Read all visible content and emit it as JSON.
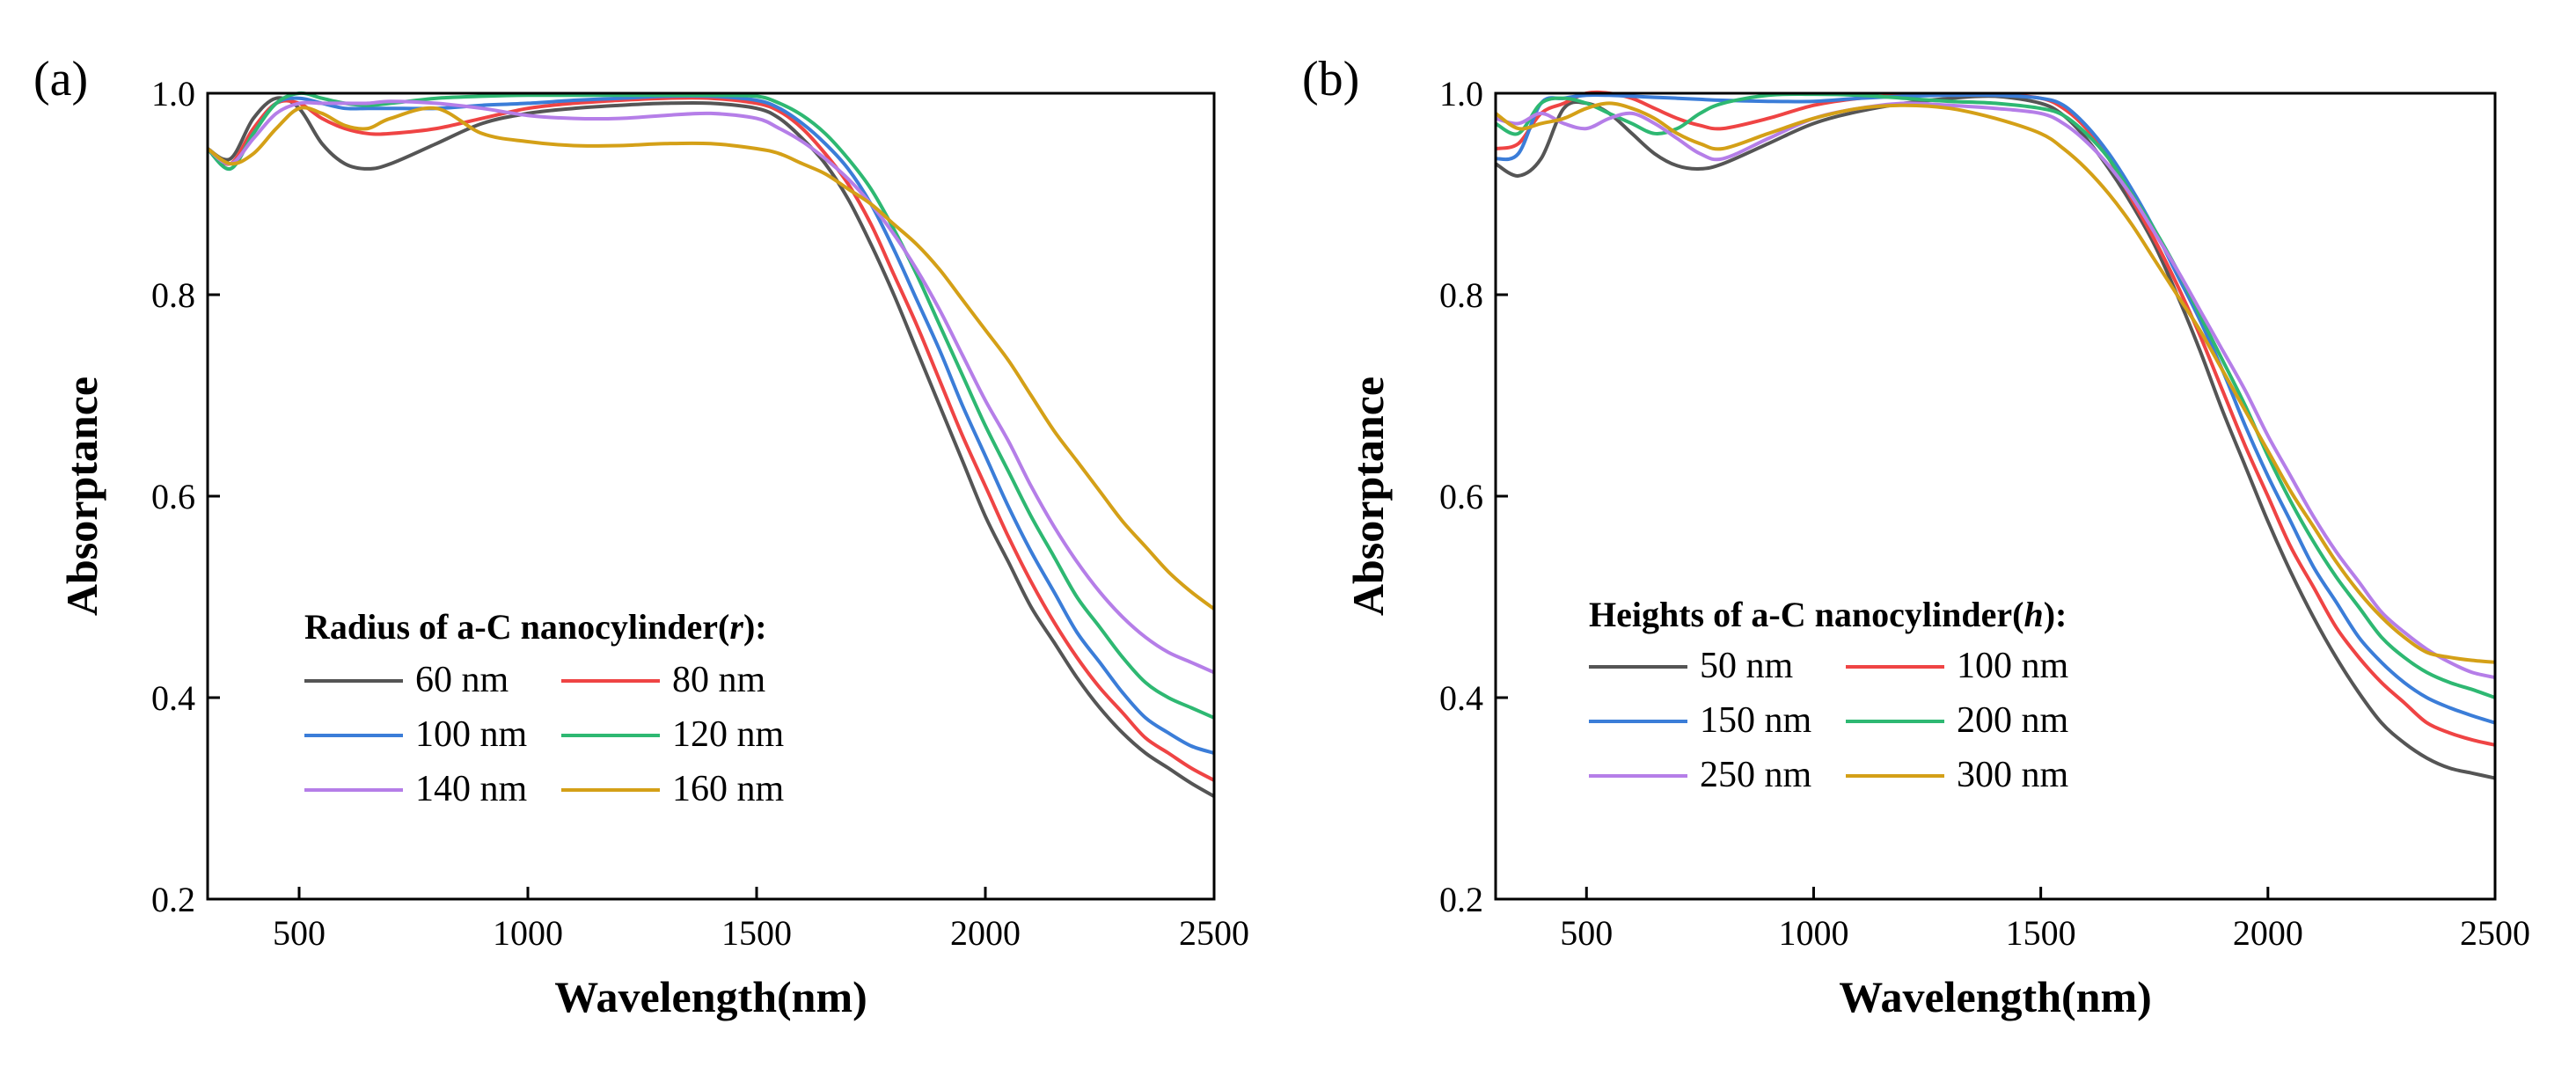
{
  "chart_data": [
    {
      "type": "line",
      "panel": "(a)",
      "xlabel": "Wavelength(nm)",
      "ylabel": "Absorptance",
      "xlim": [
        300,
        2500
      ],
      "ylim": [
        0.2,
        1.0
      ],
      "xticks": [
        "500",
        "1000",
        "1500",
        "2000",
        "2500"
      ],
      "yticks": [
        "0.2",
        "0.4",
        "0.6",
        "0.8",
        "1.0"
      ],
      "legend_title": [
        "Radius of a-C nanocylinder(",
        "r",
        "):"
      ],
      "legend_placement": "lower-left",
      "x": [
        300,
        350,
        400,
        450,
        500,
        550,
        600,
        650,
        700,
        800,
        900,
        1000,
        1100,
        1200,
        1300,
        1400,
        1500,
        1550,
        1600,
        1650,
        1700,
        1750,
        1800,
        1850,
        1900,
        1950,
        2000,
        2050,
        2100,
        2150,
        2200,
        2250,
        2300,
        2350,
        2400,
        2450,
        2500
      ],
      "series": [
        {
          "name": "60 nm",
          "color": "#555555",
          "values": [
            0.945,
            0.935,
            0.975,
            0.995,
            0.985,
            0.95,
            0.93,
            0.925,
            0.93,
            0.95,
            0.97,
            0.98,
            0.985,
            0.988,
            0.99,
            0.99,
            0.985,
            0.975,
            0.955,
            0.93,
            0.895,
            0.85,
            0.8,
            0.745,
            0.69,
            0.635,
            0.58,
            0.535,
            0.49,
            0.455,
            0.42,
            0.39,
            0.365,
            0.345,
            0.33,
            0.315,
            0.302
          ]
        },
        {
          "name": "80 nm",
          "color": "#ef4444",
          "values": [
            0.945,
            0.93,
            0.965,
            0.99,
            0.99,
            0.975,
            0.965,
            0.96,
            0.96,
            0.965,
            0.975,
            0.985,
            0.99,
            0.993,
            0.995,
            0.995,
            0.99,
            0.982,
            0.965,
            0.94,
            0.91,
            0.87,
            0.82,
            0.77,
            0.715,
            0.66,
            0.61,
            0.56,
            0.515,
            0.475,
            0.44,
            0.41,
            0.385,
            0.36,
            0.345,
            0.33,
            0.318
          ]
        },
        {
          "name": "100 nm",
          "color": "#3b7dd8",
          "values": [
            0.945,
            0.925,
            0.96,
            0.99,
            0.995,
            0.99,
            0.985,
            0.985,
            0.985,
            0.985,
            0.988,
            0.99,
            0.993,
            0.995,
            0.997,
            0.997,
            0.993,
            0.985,
            0.97,
            0.95,
            0.925,
            0.89,
            0.845,
            0.795,
            0.745,
            0.69,
            0.64,
            0.59,
            0.545,
            0.505,
            0.465,
            0.435,
            0.405,
            0.38,
            0.365,
            0.352,
            0.345
          ]
        },
        {
          "name": "120 nm",
          "color": "#2eb872",
          "values": [
            0.945,
            0.925,
            0.96,
            0.99,
            1.0,
            0.995,
            0.99,
            0.988,
            0.99,
            0.995,
            0.997,
            0.998,
            0.998,
            0.998,
            0.998,
            0.998,
            0.997,
            0.99,
            0.978,
            0.96,
            0.935,
            0.905,
            0.865,
            0.82,
            0.77,
            0.72,
            0.67,
            0.625,
            0.58,
            0.54,
            0.5,
            0.47,
            0.44,
            0.415,
            0.4,
            0.39,
            0.38
          ]
        },
        {
          "name": "140 nm",
          "color": "#b57ee8",
          "values": [
            0.945,
            0.93,
            0.955,
            0.98,
            0.99,
            0.99,
            0.99,
            0.99,
            0.992,
            0.99,
            0.985,
            0.978,
            0.975,
            0.975,
            0.978,
            0.98,
            0.975,
            0.965,
            0.952,
            0.935,
            0.915,
            0.89,
            0.86,
            0.825,
            0.785,
            0.74,
            0.695,
            0.655,
            0.61,
            0.57,
            0.535,
            0.505,
            0.48,
            0.46,
            0.445,
            0.435,
            0.425
          ]
        },
        {
          "name": "160 nm",
          "color": "#d4a017",
          "values": [
            0.945,
            0.93,
            0.94,
            0.965,
            0.985,
            0.98,
            0.968,
            0.965,
            0.975,
            0.985,
            0.96,
            0.952,
            0.948,
            0.948,
            0.95,
            0.95,
            0.945,
            0.94,
            0.93,
            0.92,
            0.905,
            0.89,
            0.87,
            0.85,
            0.825,
            0.795,
            0.765,
            0.735,
            0.7,
            0.665,
            0.635,
            0.605,
            0.575,
            0.55,
            0.525,
            0.505,
            0.488
          ]
        }
      ]
    },
    {
      "type": "line",
      "panel": "(b)",
      "xlabel": "Wavelength(nm)",
      "ylabel": "Absorptance",
      "xlim": [
        300,
        2500
      ],
      "ylim": [
        0.2,
        1.0
      ],
      "xticks": [
        "500",
        "1000",
        "1500",
        "2000",
        "2500"
      ],
      "yticks": [
        "0.2",
        "0.4",
        "0.6",
        "0.8",
        "1.0"
      ],
      "legend_title": [
        "Heights of a-C nanocylinder(",
        "h",
        "):"
      ],
      "legend_placement": "lower-left",
      "x": [
        300,
        350,
        400,
        450,
        500,
        550,
        600,
        650,
        700,
        750,
        800,
        900,
        1000,
        1100,
        1200,
        1300,
        1400,
        1500,
        1550,
        1600,
        1650,
        1700,
        1750,
        1800,
        1850,
        1900,
        1950,
        2000,
        2050,
        2100,
        2150,
        2200,
        2250,
        2300,
        2350,
        2400,
        2450,
        2500
      ],
      "series": [
        {
          "name": "50 nm",
          "color": "#555555",
          "values": [
            0.93,
            0.918,
            0.935,
            0.985,
            0.99,
            0.98,
            0.96,
            0.94,
            0.928,
            0.925,
            0.93,
            0.95,
            0.97,
            0.982,
            0.99,
            0.995,
            0.997,
            0.99,
            0.978,
            0.955,
            0.925,
            0.89,
            0.85,
            0.8,
            0.745,
            0.685,
            0.63,
            0.575,
            0.525,
            0.48,
            0.44,
            0.405,
            0.375,
            0.355,
            0.34,
            0.33,
            0.325,
            0.32
          ]
        },
        {
          "name": "100 nm",
          "color": "#ef4444",
          "values": [
            0.945,
            0.95,
            0.98,
            0.99,
            1.0,
            1.0,
            0.995,
            0.985,
            0.975,
            0.968,
            0.965,
            0.975,
            0.988,
            0.995,
            0.998,
            0.999,
            0.999,
            0.995,
            0.985,
            0.965,
            0.935,
            0.895,
            0.855,
            0.81,
            0.76,
            0.705,
            0.65,
            0.6,
            0.55,
            0.51,
            0.47,
            0.44,
            0.415,
            0.395,
            0.375,
            0.365,
            0.358,
            0.353
          ]
        },
        {
          "name": "150 nm",
          "color": "#3b7dd8",
          "values": [
            0.935,
            0.94,
            0.99,
            0.995,
            0.998,
            0.998,
            0.997,
            0.996,
            0.995,
            0.994,
            0.993,
            0.992,
            0.992,
            0.995,
            0.997,
            0.998,
            0.998,
            0.995,
            0.988,
            0.968,
            0.94,
            0.905,
            0.865,
            0.82,
            0.775,
            0.725,
            0.67,
            0.62,
            0.575,
            0.53,
            0.495,
            0.46,
            0.435,
            0.415,
            0.4,
            0.39,
            0.382,
            0.375
          ]
        },
        {
          "name": "200 nm",
          "color": "#2eb872",
          "values": [
            0.97,
            0.96,
            0.99,
            0.995,
            0.99,
            0.98,
            0.97,
            0.96,
            0.965,
            0.98,
            0.99,
            0.998,
            0.999,
            0.998,
            0.995,
            0.992,
            0.99,
            0.985,
            0.978,
            0.96,
            0.935,
            0.9,
            0.865,
            0.825,
            0.78,
            0.735,
            0.69,
            0.64,
            0.595,
            0.555,
            0.52,
            0.49,
            0.46,
            0.44,
            0.425,
            0.415,
            0.408,
            0.4
          ]
        },
        {
          "name": "250 nm",
          "color": "#b57ee8",
          "values": [
            0.975,
            0.97,
            0.98,
            0.97,
            0.965,
            0.975,
            0.98,
            0.97,
            0.955,
            0.94,
            0.935,
            0.955,
            0.975,
            0.985,
            0.99,
            0.988,
            0.985,
            0.98,
            0.97,
            0.952,
            0.928,
            0.898,
            0.862,
            0.825,
            0.785,
            0.745,
            0.705,
            0.66,
            0.62,
            0.58,
            0.545,
            0.515,
            0.485,
            0.465,
            0.448,
            0.435,
            0.425,
            0.42
          ]
        },
        {
          "name": "300 nm",
          "color": "#d4a017",
          "values": [
            0.98,
            0.965,
            0.97,
            0.975,
            0.985,
            0.99,
            0.985,
            0.975,
            0.96,
            0.95,
            0.945,
            0.96,
            0.975,
            0.985,
            0.988,
            0.985,
            0.975,
            0.96,
            0.945,
            0.925,
            0.9,
            0.87,
            0.835,
            0.8,
            0.765,
            0.725,
            0.685,
            0.645,
            0.605,
            0.57,
            0.535,
            0.505,
            0.48,
            0.46,
            0.445,
            0.44,
            0.437,
            0.435
          ]
        }
      ]
    }
  ]
}
